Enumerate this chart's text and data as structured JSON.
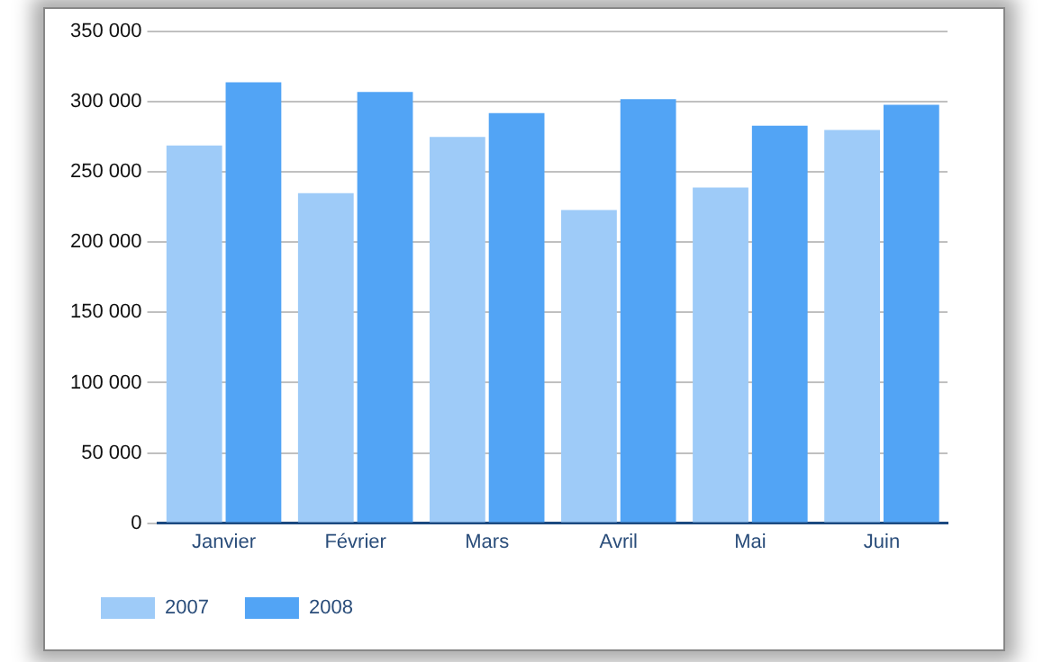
{
  "chart_data": {
    "type": "bar",
    "categories": [
      "Janvier",
      "Février",
      "Mars",
      "Avril",
      "Mai",
      "Juin"
    ],
    "series": [
      {
        "name": "2007",
        "color": "#9ecbf8",
        "values": [
          269000,
          235000,
          275000,
          223000,
          239000,
          280000
        ]
      },
      {
        "name": "2008",
        "color": "#52a4f5",
        "values": [
          314000,
          307000,
          292000,
          302000,
          283000,
          298000
        ]
      }
    ],
    "ylim": [
      0,
      350000
    ],
    "yticks": [
      0,
      {
        "value": 50000,
        "label": "50 000"
      },
      {
        "value": 100000,
        "label": "100 000"
      },
      {
        "value": 150000,
        "label": "150 000"
      },
      {
        "value": 200000,
        "label": "200 000"
      },
      {
        "value": 250000,
        "label": "250 000"
      },
      {
        "value": 300000,
        "label": "300 000"
      },
      {
        "value": 350000,
        "label": "350 000"
      }
    ],
    "grid": "y",
    "legend": "bottom left"
  }
}
